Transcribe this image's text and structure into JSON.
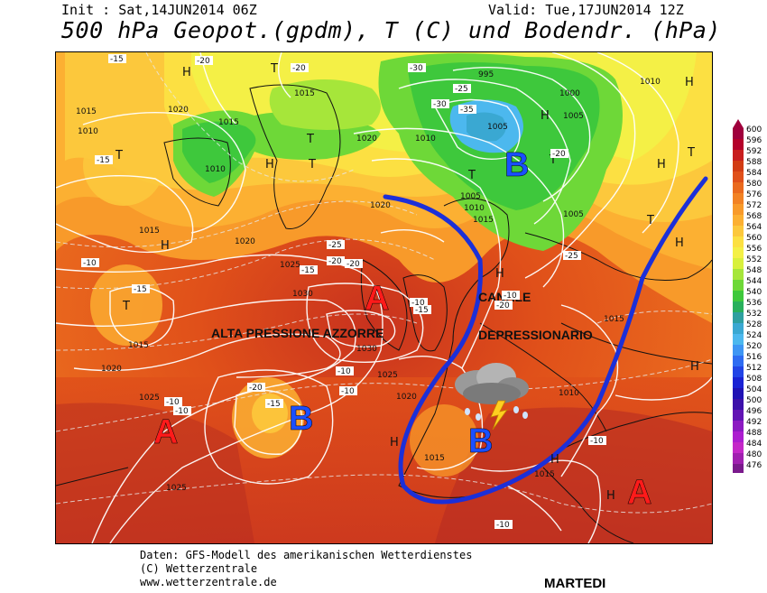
{
  "header": {
    "init": "Init : Sat,14JUN2014 06Z",
    "valid": "Valid: Tue,17JUN2014 12Z",
    "title": "500 hPa Geopot.(gpdm), T (C) und Bodendr. (hPa)"
  },
  "annotations": {
    "alta": "ALTA PRESSIONE AZZORRE",
    "canale": "CANALE",
    "depressionario": "DEPRESSIONARIO"
  },
  "pressure_centers": [
    {
      "label": "A",
      "color": "#ff1a1a"
    },
    {
      "label": "A",
      "color": "#ff1a1a"
    },
    {
      "label": "A",
      "color": "#ff1a1a"
    },
    {
      "label": "B",
      "color": "#1a4fff"
    },
    {
      "label": "B",
      "color": "#1a4fff"
    },
    {
      "label": "B",
      "color": "#1a4fff"
    }
  ],
  "small_labels": [
    {
      "t": "H"
    },
    {
      "t": "H"
    },
    {
      "t": "H"
    },
    {
      "t": "H"
    },
    {
      "t": "H"
    },
    {
      "t": "H"
    },
    {
      "t": "H"
    },
    {
      "t": "H"
    },
    {
      "t": "H"
    },
    {
      "t": "H"
    },
    {
      "t": "H"
    },
    {
      "t": "H"
    },
    {
      "t": "T"
    },
    {
      "t": "T"
    },
    {
      "t": "T"
    },
    {
      "t": "T"
    },
    {
      "t": "T"
    },
    {
      "t": "T"
    },
    {
      "t": "T"
    },
    {
      "t": "T"
    },
    {
      "t": "T"
    }
  ],
  "isobar_labels": [
    "1015",
    "1010",
    "1020",
    "1015",
    "1010",
    "1015",
    "1015",
    "1020",
    "1025",
    "1030",
    "1030",
    "1025",
    "1020",
    "1015",
    "1025",
    "1025",
    "1020",
    "995",
    "1000",
    "1005",
    "1005",
    "1010",
    "1005",
    "1010",
    "1015",
    "1005",
    "1010",
    "1015",
    "1020",
    "1010",
    "1015",
    "1020",
    "1015"
  ],
  "temp_labels": [
    "-15",
    "-15",
    "-20",
    "-20",
    "-30",
    "-35",
    "-25",
    "-30",
    "-20",
    "-25",
    "-20",
    "-15",
    "-25",
    "-20",
    "-10",
    "-15",
    "-10",
    "-10",
    "-15",
    "-20",
    "-10",
    "-10",
    "-20",
    "-15",
    "-10",
    "-10",
    "-10",
    "-10"
  ],
  "scale": {
    "values": [
      "600",
      "596",
      "592",
      "588",
      "584",
      "580",
      "576",
      "572",
      "568",
      "564",
      "560",
      "556",
      "552",
      "548",
      "544",
      "540",
      "536",
      "532",
      "528",
      "524",
      "520",
      "516",
      "512",
      "508",
      "504",
      "500",
      "496",
      "492",
      "488",
      "484",
      "480",
      "476"
    ],
    "colors": [
      "#a0003c",
      "#b4002a",
      "#c81e1e",
      "#d23c14",
      "#e0501a",
      "#ea6a1e",
      "#f28224",
      "#f89a2a",
      "#fcb032",
      "#fcc83c",
      "#fce042",
      "#f4f046",
      "#d8f03c",
      "#a6e63a",
      "#6ed838",
      "#3ec83c",
      "#28b05c",
      "#2ea0a0",
      "#3aa8d2",
      "#4cb8ee",
      "#3e96f4",
      "#2e6cf2",
      "#2244e6",
      "#1a22d4",
      "#2012b4",
      "#3c10aa",
      "#6214b4",
      "#8c1ac2",
      "#ac1ed0",
      "#c428c8",
      "#a020b0",
      "#7a1a8c"
    ]
  },
  "footer": {
    "line1": "Daten: GFS-Modell des amerikanischen Wetterdienstes",
    "line2": "(C) Wetterzentrale",
    "line3": "www.wetterzentrale.de",
    "day": "MARTEDI"
  }
}
